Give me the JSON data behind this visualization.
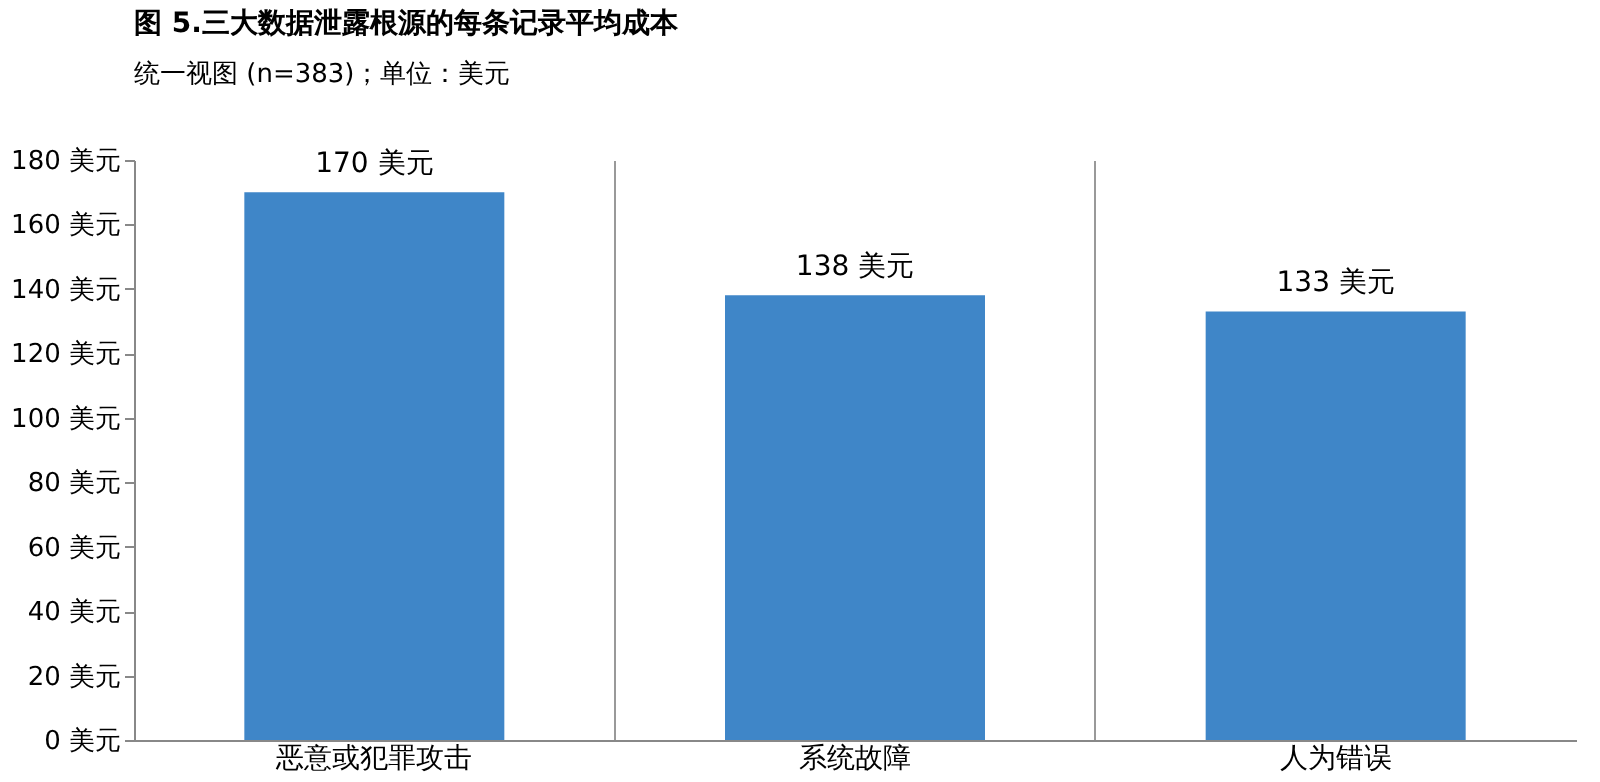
{
  "chart_data": {
    "type": "bar",
    "title": "图 5.三大数据泄露根源的每条记录平均成本",
    "subtitle": "统一视图 (n=383)；单位：美元",
    "categories": [
      "恶意或犯罪攻击",
      "系统故障",
      "人为错误"
    ],
    "values": [
      170,
      138,
      133
    ],
    "value_labels": [
      "170 美元",
      "138 美元",
      "133 美元"
    ],
    "color": "#3f86c8",
    "ylim": [
      0,
      180
    ],
    "yticks": [
      {
        "value": 0,
        "label": "0 美元"
      },
      {
        "value": 20,
        "label": "20 美元"
      },
      {
        "value": 40,
        "label": "40 美元"
      },
      {
        "value": 60,
        "label": "60 美元"
      },
      {
        "value": 80,
        "label": "80 美元"
      },
      {
        "value": 100,
        "label": "100 美元"
      },
      {
        "value": 120,
        "label": "120 美元"
      },
      {
        "value": 140,
        "label": "140 美元"
      },
      {
        "value": 160,
        "label": "160 美元"
      },
      {
        "value": 180,
        "label": "180 美元"
      }
    ],
    "grid": "x"
  }
}
